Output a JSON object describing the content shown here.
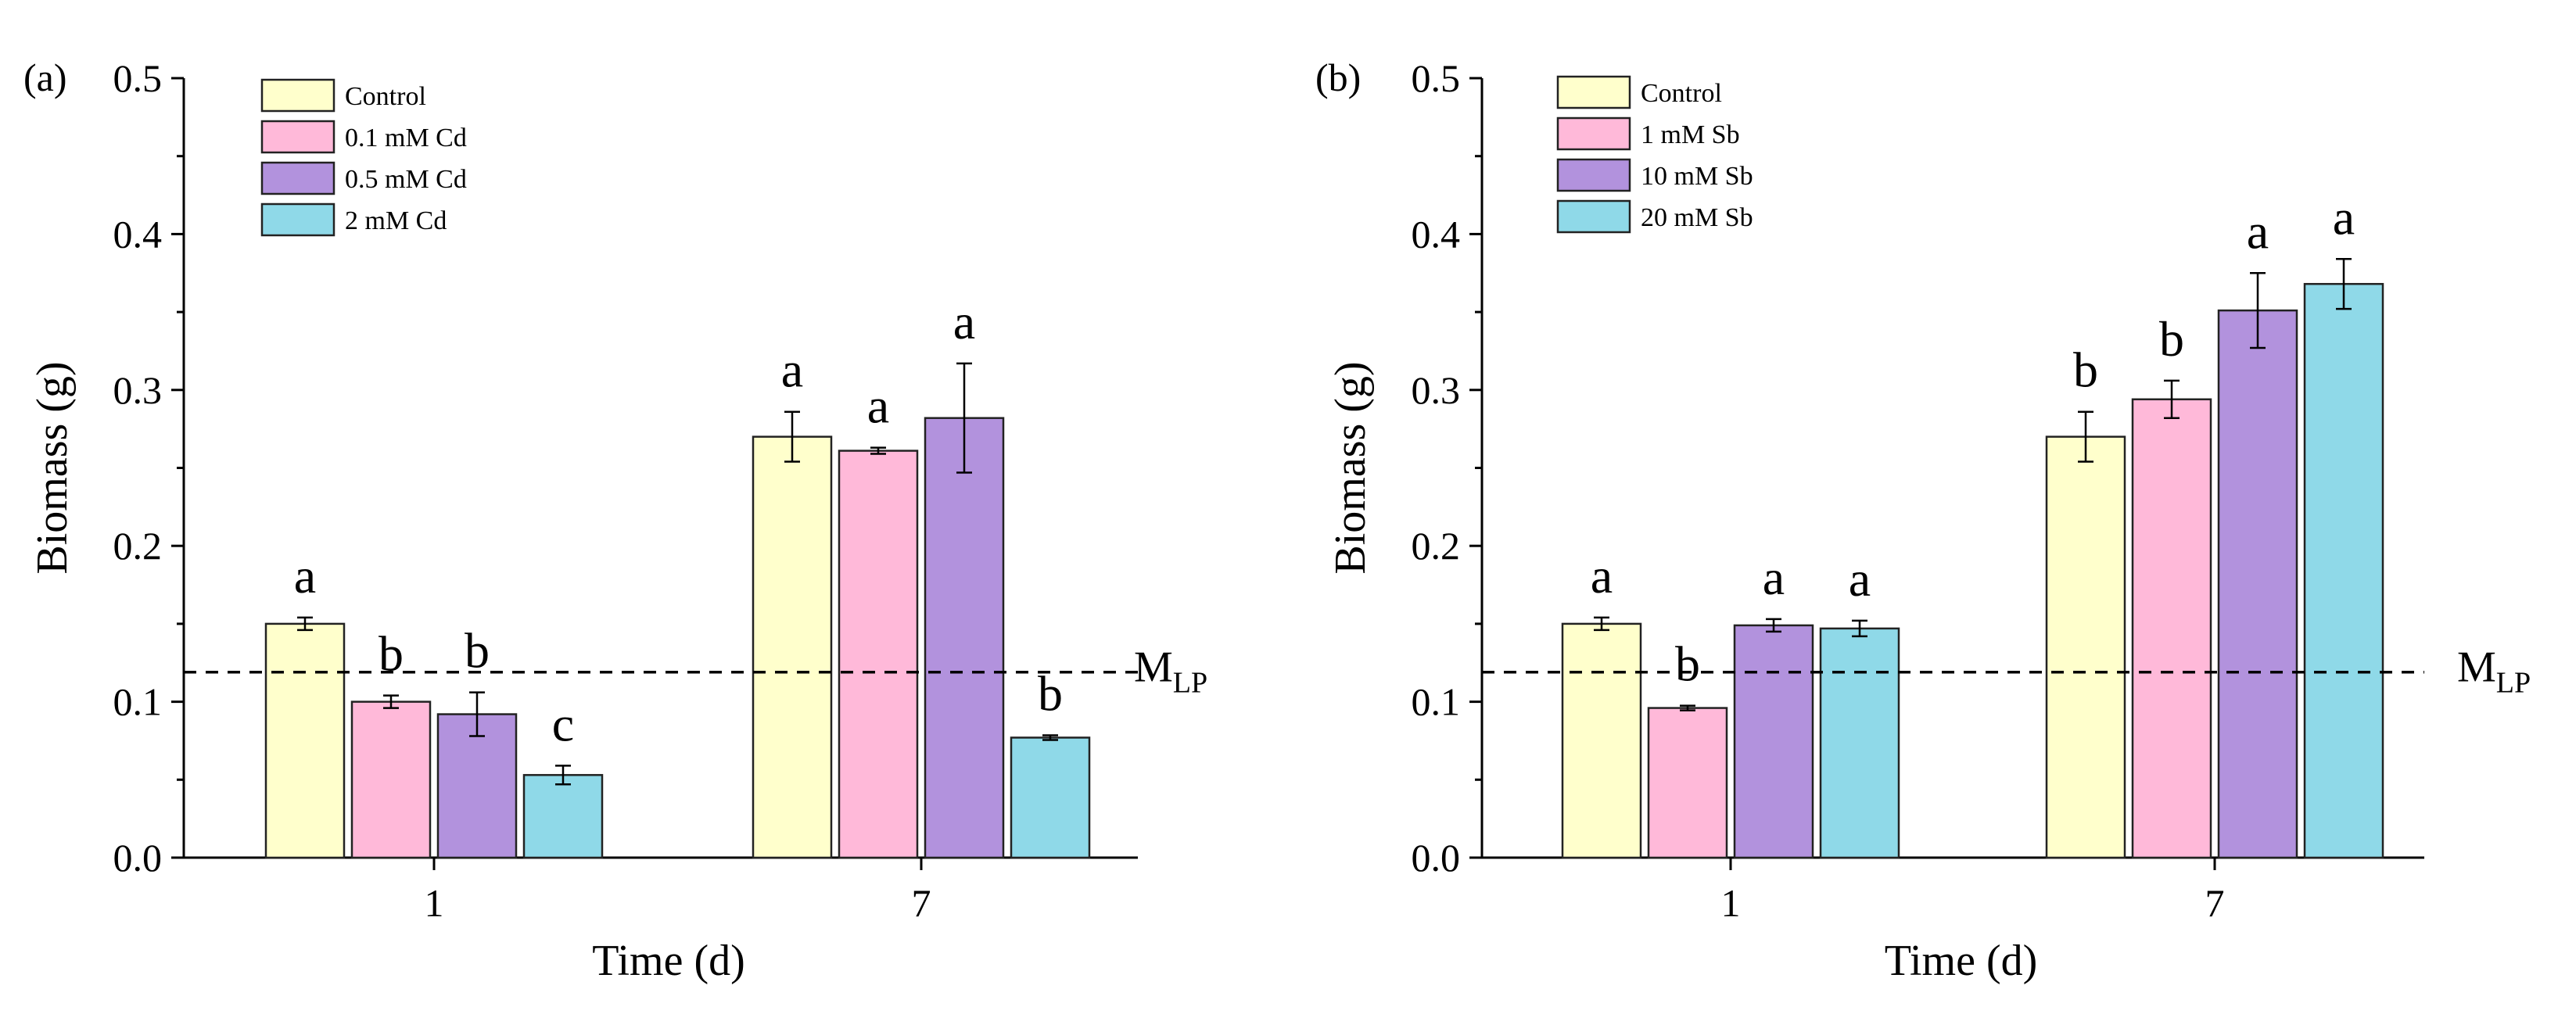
{
  "chart_data": [
    {
      "type": "bar",
      "panel_label": "(a)",
      "xlabel": "Time (d)",
      "ylabel": "Biomass (g)",
      "categories": [
        "1",
        "7"
      ],
      "ylim": [
        0,
        0.5
      ],
      "yticks": [
        "0.0",
        "0.1",
        "0.2",
        "0.3",
        "0.4",
        "0.5"
      ],
      "legend_position": "top-left",
      "series": [
        {
          "name": "Control",
          "color": "#FFFFCC",
          "values": [
            0.15,
            0.27
          ],
          "errors": [
            0.004,
            0.016
          ],
          "letters": [
            "a",
            "a"
          ]
        },
        {
          "name": "0.1 mM Cd",
          "color": "#FFB9D9",
          "values": [
            0.1,
            0.261
          ],
          "errors": [
            0.004,
            0.002
          ],
          "letters": [
            "b",
            "a"
          ]
        },
        {
          "name": "0.5 mM Cd",
          "color": "#B292DD",
          "values": [
            0.092,
            0.282
          ],
          "errors": [
            0.014,
            0.035
          ],
          "letters": [
            "b",
            "a"
          ]
        },
        {
          "name": "2 mM Cd",
          "color": "#8FD9E8",
          "values": [
            0.053,
            0.077
          ],
          "errors": [
            0.006,
            0.0015
          ],
          "letters": [
            "c",
            "b"
          ]
        }
      ],
      "reference_line": {
        "value": 0.119,
        "label_main": "M",
        "label_sub": "LP",
        "style": "dashed"
      }
    },
    {
      "type": "bar",
      "panel_label": "(b)",
      "xlabel": "Time (d)",
      "ylabel": "Biomass (g)",
      "categories": [
        "1",
        "7"
      ],
      "ylim": [
        0,
        0.5
      ],
      "yticks": [
        "0.0",
        "0.1",
        "0.2",
        "0.3",
        "0.4",
        "0.5"
      ],
      "legend_position": "top-left",
      "series": [
        {
          "name": "Control",
          "color": "#FFFFCC",
          "values": [
            0.15,
            0.27
          ],
          "errors": [
            0.004,
            0.016
          ],
          "letters": [
            "a",
            "b"
          ]
        },
        {
          "name": "1 mM Sb",
          "color": "#FFB9D9",
          "values": [
            0.096,
            0.294
          ],
          "errors": [
            0.0015,
            0.012
          ],
          "letters": [
            "b",
            "b"
          ]
        },
        {
          "name": "10 mM Sb",
          "color": "#B292DD",
          "values": [
            0.149,
            0.351
          ],
          "errors": [
            0.004,
            0.024
          ],
          "letters": [
            "a",
            "a"
          ]
        },
        {
          "name": "20 mM Sb",
          "color": "#8FD9E8",
          "values": [
            0.147,
            0.368
          ],
          "errors": [
            0.005,
            0.016
          ],
          "letters": [
            "a",
            "a"
          ]
        }
      ],
      "reference_line": {
        "value": 0.119,
        "label_main": "M",
        "label_sub": "LP",
        "style": "dashed"
      }
    }
  ]
}
